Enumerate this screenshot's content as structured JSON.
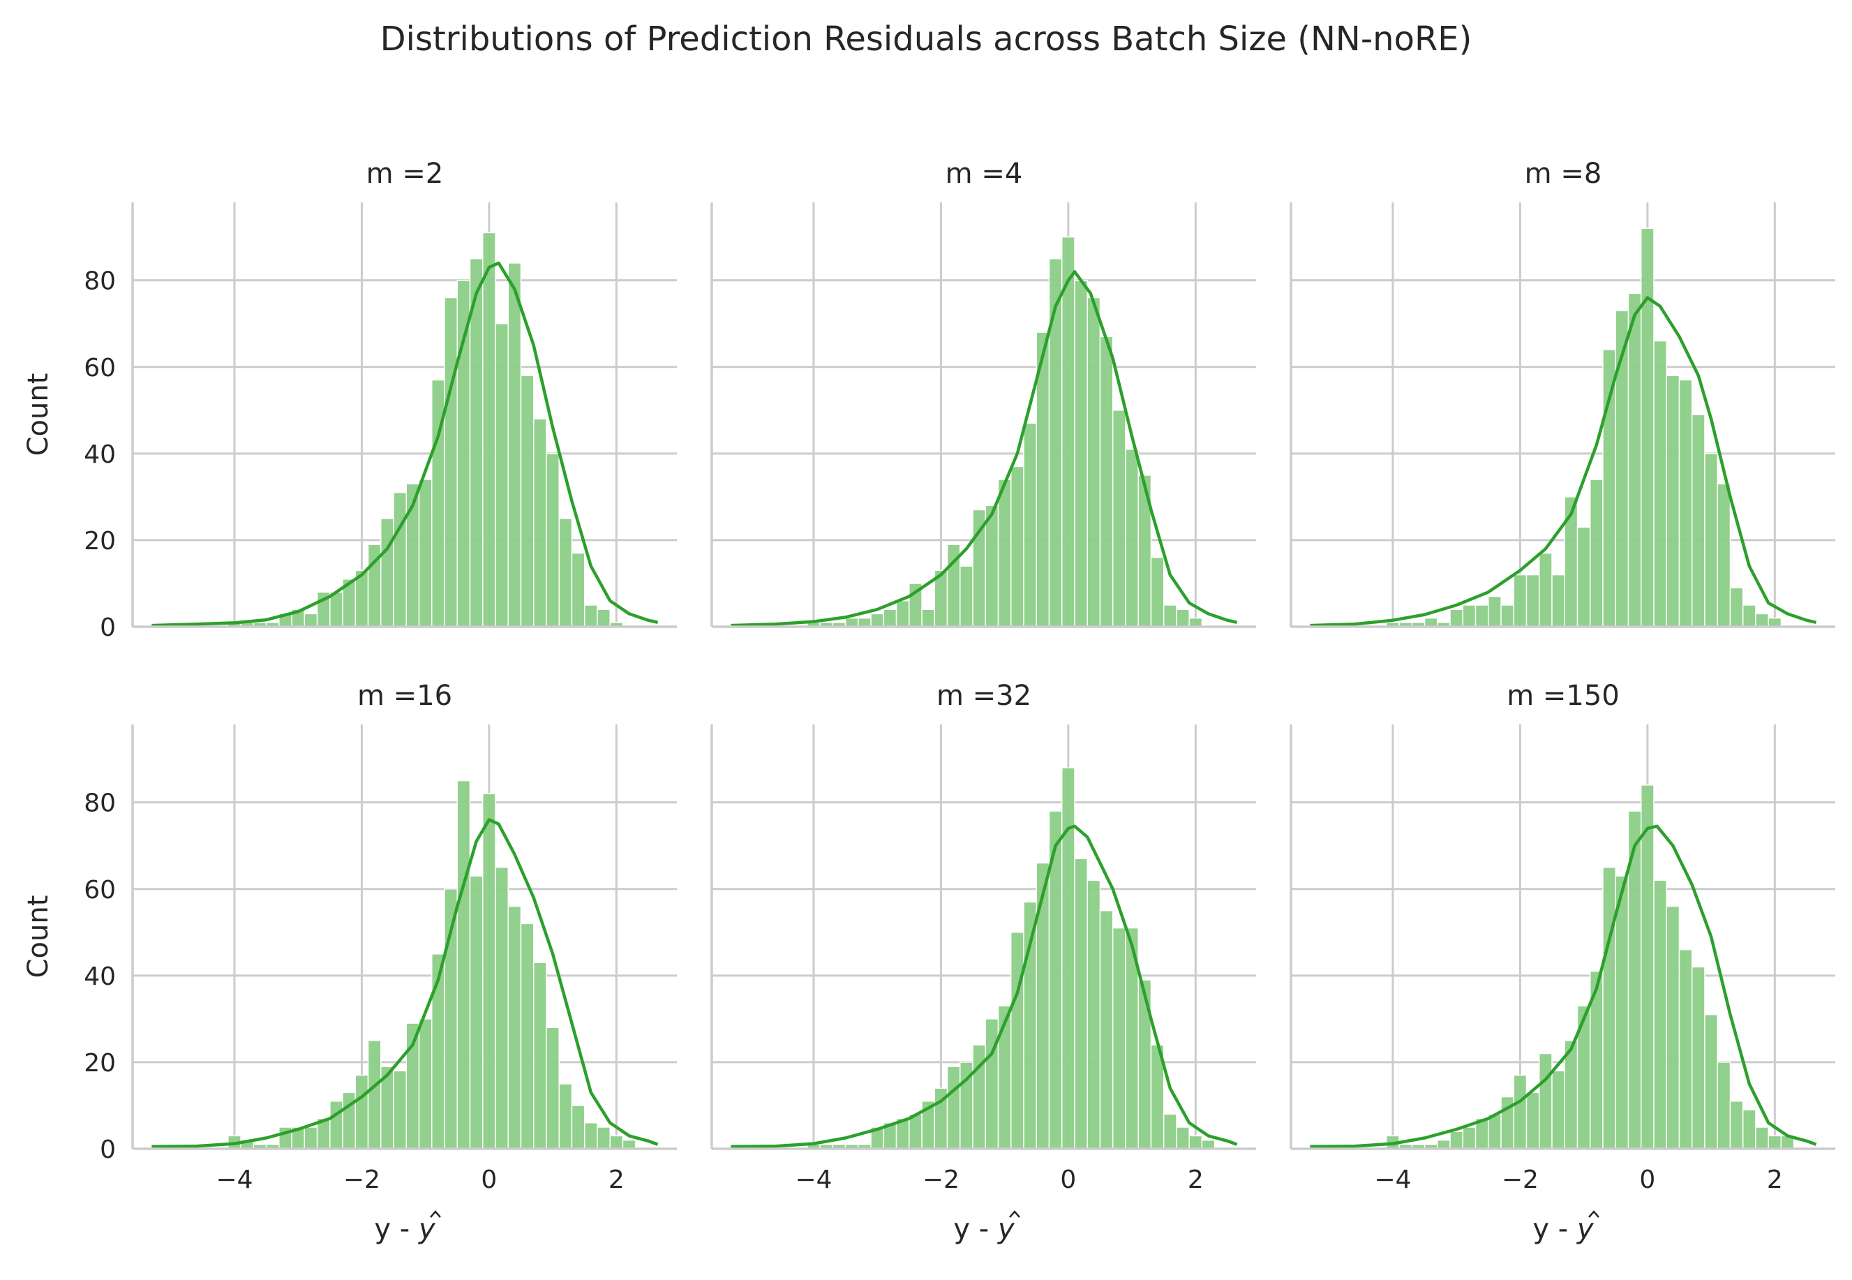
{
  "figure": {
    "title": "Distributions of Prediction Residuals across Batch Size (NN-noRE)",
    "xlabel_prefix": "y - ",
    "xlabel_var": "y",
    "ylabel": "Count"
  },
  "colors": {
    "bar_fill": "#8cce87",
    "kde_line": "#2ca02c",
    "grid": "#cccccc",
    "axis": "#cccccc"
  },
  "chart_data": {
    "type": "histogram",
    "xlim": [
      -5.6,
      2.95
    ],
    "ylim": [
      0,
      98
    ],
    "xticks": [
      -4,
      -2,
      0,
      2
    ],
    "xtick_labels": [
      "−4",
      "−2",
      "0",
      "2"
    ],
    "yticks": [
      0,
      20,
      40,
      60,
      80
    ],
    "ytick_labels": [
      "0",
      "20",
      "40",
      "60",
      "80"
    ],
    "bin_start": -5.3,
    "bin_width": 0.2,
    "grid": true,
    "panels": [
      {
        "title": "m =2",
        "counts": [
          0,
          0,
          0,
          0,
          0,
          0,
          1,
          1,
          1,
          1,
          3,
          4,
          3,
          8,
          8,
          11,
          13,
          19,
          25,
          31,
          33,
          34,
          57,
          76,
          80,
          85,
          91,
          70,
          84,
          58,
          48,
          40,
          25,
          17,
          5,
          4,
          1,
          0,
          0,
          0
        ],
        "kde": [
          [
            -5.3,
            0.3
          ],
          [
            -4.6,
            0.6
          ],
          [
            -4.0,
            0.9
          ],
          [
            -3.5,
            1.6
          ],
          [
            -3.0,
            3.5
          ],
          [
            -2.5,
            7
          ],
          [
            -2.0,
            12
          ],
          [
            -1.6,
            18
          ],
          [
            -1.2,
            28
          ],
          [
            -0.8,
            44
          ],
          [
            -0.5,
            61
          ],
          [
            -0.2,
            77
          ],
          [
            0.0,
            83
          ],
          [
            0.15,
            84
          ],
          [
            0.4,
            78
          ],
          [
            0.7,
            65
          ],
          [
            1.0,
            46
          ],
          [
            1.3,
            29
          ],
          [
            1.6,
            14
          ],
          [
            1.9,
            6
          ],
          [
            2.2,
            3
          ],
          [
            2.5,
            1.5
          ],
          [
            2.65,
            1
          ]
        ]
      },
      {
        "title": "m =4",
        "counts": [
          0,
          0,
          0,
          0,
          0,
          0,
          1,
          1,
          1,
          2,
          2,
          3,
          4,
          6,
          10,
          4,
          13,
          19,
          14,
          27,
          28,
          34,
          37,
          47,
          68,
          85,
          90,
          80,
          76,
          67,
          50,
          41,
          35,
          16,
          5,
          4,
          2,
          0,
          0,
          0
        ],
        "kde": [
          [
            -5.3,
            0.3
          ],
          [
            -4.6,
            0.6
          ],
          [
            -4.0,
            1.2
          ],
          [
            -3.5,
            2.2
          ],
          [
            -3.0,
            4
          ],
          [
            -2.5,
            7
          ],
          [
            -2.0,
            12
          ],
          [
            -1.6,
            18
          ],
          [
            -1.2,
            26
          ],
          [
            -0.8,
            40
          ],
          [
            -0.5,
            57
          ],
          [
            -0.2,
            74
          ],
          [
            0.0,
            80
          ],
          [
            0.1,
            82
          ],
          [
            0.35,
            77
          ],
          [
            0.7,
            62
          ],
          [
            1.0,
            44
          ],
          [
            1.3,
            27
          ],
          [
            1.6,
            12
          ],
          [
            1.9,
            5.5
          ],
          [
            2.2,
            3
          ],
          [
            2.5,
            1.5
          ],
          [
            2.65,
            1
          ]
        ]
      },
      {
        "title": "m =8",
        "counts": [
          0,
          0,
          0,
          0,
          0,
          0,
          1,
          1,
          1,
          2,
          1,
          4,
          5,
          5,
          7,
          5,
          12,
          12,
          17,
          12,
          30,
          23,
          34,
          64,
          73,
          77,
          92,
          66,
          58,
          57,
          49,
          40,
          33,
          9,
          5,
          3,
          2,
          0,
          0,
          0
        ],
        "kde": [
          [
            -5.3,
            0.3
          ],
          [
            -4.6,
            0.6
          ],
          [
            -4.0,
            1.5
          ],
          [
            -3.5,
            2.8
          ],
          [
            -3.0,
            5
          ],
          [
            -2.5,
            8
          ],
          [
            -2.0,
            13
          ],
          [
            -1.6,
            18
          ],
          [
            -1.2,
            26
          ],
          [
            -0.8,
            42
          ],
          [
            -0.5,
            58
          ],
          [
            -0.2,
            72
          ],
          [
            0.0,
            76
          ],
          [
            0.2,
            74
          ],
          [
            0.5,
            67
          ],
          [
            0.8,
            58
          ],
          [
            1.0,
            48
          ],
          [
            1.3,
            30
          ],
          [
            1.6,
            14
          ],
          [
            1.9,
            5.5
          ],
          [
            2.2,
            3
          ],
          [
            2.5,
            1.5
          ],
          [
            2.65,
            1
          ]
        ]
      },
      {
        "title": "m =16",
        "counts": [
          0,
          0,
          0,
          0,
          0,
          0,
          3,
          2,
          1,
          1,
          5,
          5,
          5,
          7,
          11,
          13,
          17,
          25,
          19,
          18,
          29,
          30,
          45,
          60,
          85,
          63,
          82,
          65,
          56,
          52,
          43,
          28,
          15,
          10,
          6,
          5,
          3,
          2,
          0,
          0
        ],
        "kde": [
          [
            -5.3,
            0.5
          ],
          [
            -4.6,
            0.6
          ],
          [
            -4.0,
            1.2
          ],
          [
            -3.5,
            2.5
          ],
          [
            -3.0,
            4.5
          ],
          [
            -2.5,
            7
          ],
          [
            -2.0,
            12
          ],
          [
            -1.6,
            17
          ],
          [
            -1.2,
            24
          ],
          [
            -0.8,
            39
          ],
          [
            -0.5,
            56
          ],
          [
            -0.2,
            71
          ],
          [
            0.0,
            76
          ],
          [
            0.15,
            75
          ],
          [
            0.4,
            68
          ],
          [
            0.7,
            58
          ],
          [
            1.0,
            45
          ],
          [
            1.3,
            29
          ],
          [
            1.6,
            13
          ],
          [
            1.9,
            6
          ],
          [
            2.2,
            3
          ],
          [
            2.5,
            1.8
          ],
          [
            2.65,
            1
          ]
        ]
      },
      {
        "title": "m =32",
        "counts": [
          0,
          0,
          0,
          0,
          0,
          0,
          1,
          1,
          1,
          1,
          1,
          5,
          6,
          7,
          8,
          11,
          14,
          19,
          20,
          24,
          30,
          33,
          50,
          57,
          66,
          78,
          88,
          67,
          62,
          55,
          51,
          51,
          39,
          24,
          8,
          5,
          3,
          2,
          0,
          0
        ],
        "kde": [
          [
            -5.3,
            0.5
          ],
          [
            -4.6,
            0.6
          ],
          [
            -4.0,
            1.2
          ],
          [
            -3.5,
            2.5
          ],
          [
            -3.0,
            4.5
          ],
          [
            -2.5,
            7
          ],
          [
            -2.0,
            11
          ],
          [
            -1.6,
            16
          ],
          [
            -1.2,
            22
          ],
          [
            -0.8,
            36
          ],
          [
            -0.5,
            53
          ],
          [
            -0.2,
            70
          ],
          [
            0.0,
            74
          ],
          [
            0.1,
            74.5
          ],
          [
            0.3,
            72
          ],
          [
            0.7,
            60
          ],
          [
            1.0,
            47
          ],
          [
            1.3,
            30
          ],
          [
            1.6,
            14
          ],
          [
            1.9,
            6
          ],
          [
            2.2,
            3
          ],
          [
            2.5,
            1.8
          ],
          [
            2.65,
            1
          ]
        ]
      },
      {
        "title": "m =150",
        "counts": [
          0,
          0,
          0,
          0,
          0,
          0,
          3,
          1,
          1,
          1,
          2,
          4,
          5,
          7,
          8,
          12,
          17,
          13,
          22,
          18,
          25,
          33,
          41,
          65,
          63,
          78,
          84,
          62,
          56,
          46,
          42,
          31,
          20,
          11,
          9,
          5,
          3,
          3,
          0,
          0
        ],
        "kde": [
          [
            -5.3,
            0.5
          ],
          [
            -4.6,
            0.6
          ],
          [
            -4.0,
            1.2
          ],
          [
            -3.5,
            2.5
          ],
          [
            -3.0,
            4.5
          ],
          [
            -2.5,
            7
          ],
          [
            -2.0,
            11
          ],
          [
            -1.6,
            16
          ],
          [
            -1.2,
            23
          ],
          [
            -0.8,
            37
          ],
          [
            -0.5,
            54
          ],
          [
            -0.2,
            70
          ],
          [
            0.0,
            74
          ],
          [
            0.15,
            74.5
          ],
          [
            0.4,
            70
          ],
          [
            0.7,
            61
          ],
          [
            1.0,
            49
          ],
          [
            1.3,
            31
          ],
          [
            1.6,
            15
          ],
          [
            1.9,
            6
          ],
          [
            2.2,
            3
          ],
          [
            2.5,
            1.8
          ],
          [
            2.65,
            1
          ]
        ]
      }
    ]
  }
}
